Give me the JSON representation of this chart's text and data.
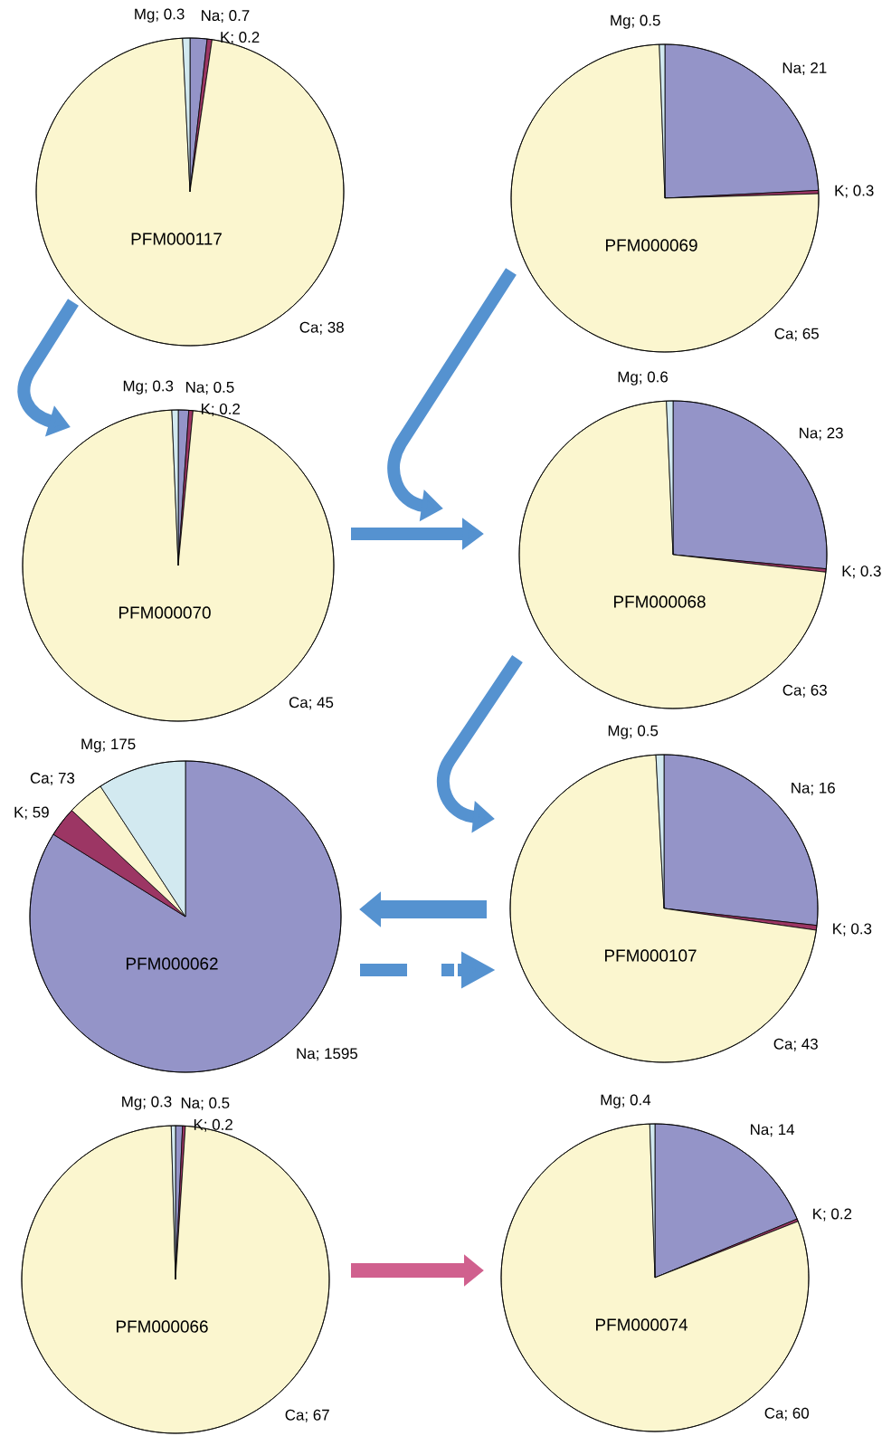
{
  "chart_data": [
    {
      "type": "pie",
      "title": "PFM000117",
      "categories": [
        "Na",
        "K",
        "Ca",
        "Mg"
      ],
      "values": [
        0.7,
        0.2,
        38,
        0.3
      ],
      "value_labels": [
        "; 0.7",
        "; 0.2",
        "; 38",
        "; 0.3"
      ],
      "colors": [
        "#9494c8",
        "#9c3664",
        "#fbf6cf",
        "#d2e9f0"
      ]
    },
    {
      "type": "pie",
      "title": "PFM000069",
      "categories": [
        "Na",
        "K",
        "Ca",
        "Mg"
      ],
      "values": [
        21,
        0.3,
        65,
        0.5
      ],
      "value_labels": [
        "; 21",
        "; 0.3",
        "; 65",
        "; 0.5"
      ],
      "colors": [
        "#9494c8",
        "#9c3664",
        "#fbf6cf",
        "#d2e9f0"
      ]
    },
    {
      "type": "pie",
      "title": "PFM000070",
      "categories": [
        "Na",
        "K",
        "Ca",
        "Mg"
      ],
      "values": [
        0.5,
        0.2,
        45,
        0.3
      ],
      "value_labels": [
        "; 0.5",
        "; 0.2",
        "; 45",
        "; 0.3"
      ],
      "colors": [
        "#9494c8",
        "#9c3664",
        "#fbf6cf",
        "#d2e9f0"
      ]
    },
    {
      "type": "pie",
      "title": "PFM000068",
      "categories": [
        "Na",
        "K",
        "Ca",
        "Mg"
      ],
      "values": [
        23,
        0.3,
        63,
        0.6
      ],
      "value_labels": [
        "; 23",
        "; 0.3",
        "; 63",
        "; 0.6"
      ],
      "colors": [
        "#9494c8",
        "#9c3664",
        "#fbf6cf",
        "#d2e9f0"
      ]
    },
    {
      "type": "pie",
      "title": "PFM000062",
      "categories": [
        "Na",
        "K",
        "Ca",
        "Mg"
      ],
      "values": [
        1595,
        59,
        73,
        175
      ],
      "value_labels": [
        "; 1595",
        "; 59",
        "; 73",
        "; 175"
      ],
      "colors": [
        "#9494c8",
        "#9c3664",
        "#fbf6cf",
        "#d2e9f0"
      ]
    },
    {
      "type": "pie",
      "title": "PFM000107",
      "categories": [
        "Na",
        "K",
        "Ca",
        "Mg"
      ],
      "values": [
        16,
        0.3,
        43,
        0.5
      ],
      "value_labels": [
        "; 16",
        "; 0.3",
        "; 43",
        "; 0.5"
      ],
      "colors": [
        "#9494c8",
        "#9c3664",
        "#fbf6cf",
        "#d2e9f0"
      ]
    },
    {
      "type": "pie",
      "title": "PFM000066",
      "categories": [
        "Na",
        "K",
        "Ca",
        "Mg"
      ],
      "values": [
        0.5,
        0.2,
        67,
        0.3
      ],
      "value_labels": [
        "; 0.5",
        "; 0.2",
        "; 67",
        "; 0.3"
      ],
      "colors": [
        "#9494c8",
        "#9c3664",
        "#fbf6cf",
        "#d2e9f0"
      ]
    },
    {
      "type": "pie",
      "title": "PFM000074",
      "categories": [
        "Na",
        "K",
        "Ca",
        "Mg"
      ],
      "values": [
        14,
        0.2,
        60,
        0.4
      ],
      "value_labels": [
        "; 14",
        "; 0.2",
        "; 60",
        "; 0.4"
      ],
      "colors": [
        "#9494c8",
        "#9c3664",
        "#fbf6cf",
        "#d2e9f0"
      ]
    }
  ]
}
